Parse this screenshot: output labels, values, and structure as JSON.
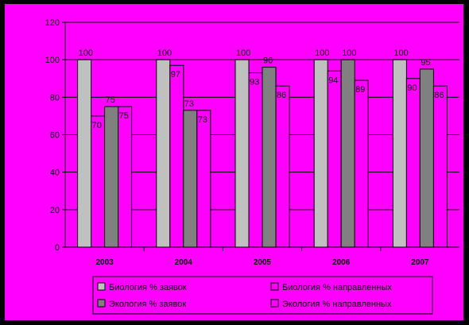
{
  "colors": {
    "frame": "#000000",
    "background": "#ff00ff",
    "bio_requests": "#c0c0c0",
    "eco_requests": "#808080",
    "sent": "#ff00ff",
    "outline": "#000000"
  },
  "chart_data": {
    "type": "bar",
    "title": "",
    "xlabel": "",
    "ylabel": "",
    "ylim": [
      0,
      120
    ],
    "yticks": [
      0,
      20,
      40,
      60,
      80,
      100,
      120
    ],
    "grid": true,
    "legend_position": "bottom",
    "categories": [
      "2003",
      "2004",
      "2005",
      "2006",
      "2007"
    ],
    "series": [
      {
        "name": "Биология % заявок",
        "values": [
          100,
          100,
          100,
          100,
          100
        ],
        "labels": [
          "100",
          "100",
          "100",
          "100",
          "100"
        ],
        "color": "#c0c0c0"
      },
      {
        "name": "Биология % направленных",
        "values": [
          70,
          97,
          93,
          94,
          90
        ],
        "labels": [
          "70",
          "97",
          "93",
          "94",
          "90"
        ],
        "color": "#ff00ff"
      },
      {
        "name": "Экология % заявок",
        "values": [
          75,
          73,
          96,
          100,
          95
        ],
        "labels": [
          "75",
          "73",
          "96",
          "100",
          "95"
        ],
        "color": "#808080"
      },
      {
        "name": "Экология % направленных",
        "values": [
          75,
          73,
          86,
          89,
          86
        ],
        "labels": [
          "75",
          "73",
          "86",
          "89",
          "86"
        ],
        "color": "#ff00ff"
      }
    ],
    "legend": {
      "column_left": [
        "Биология % заявок",
        "Экология % заявок"
      ],
      "column_right": [
        "Биология % направленных",
        "Экология % направленных"
      ]
    }
  }
}
